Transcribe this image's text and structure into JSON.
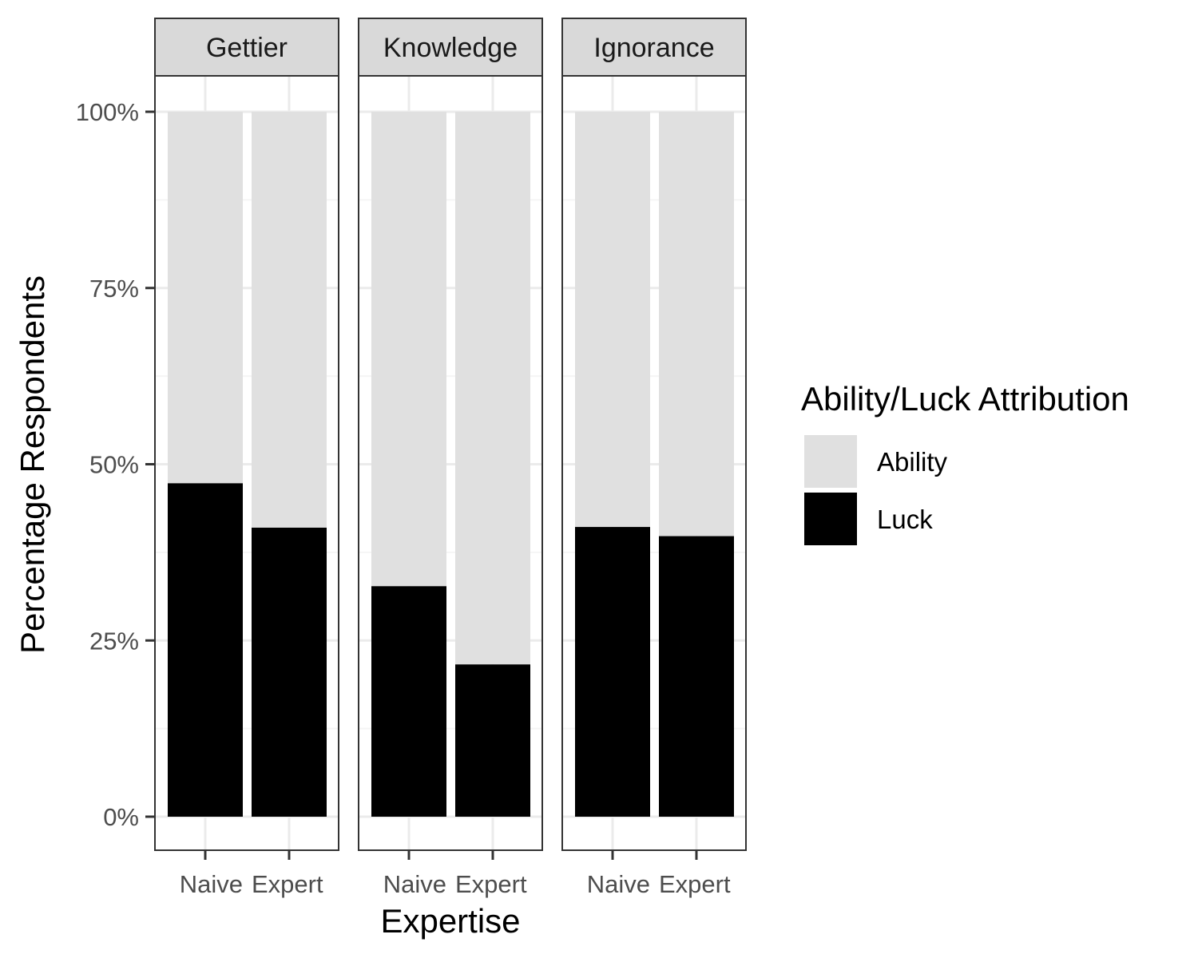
{
  "chart_data": {
    "type": "bar",
    "stacked": true,
    "title": "",
    "xlabel": "Expertise",
    "ylabel": "Percentage Respondents",
    "ylim": [
      0,
      1
    ],
    "yticks": [
      {
        "value": 0,
        "label": "0%"
      },
      {
        "value": 0.25,
        "label": "25%"
      },
      {
        "value": 0.5,
        "label": "50%"
      },
      {
        "value": 0.75,
        "label": "75%"
      },
      {
        "value": 1,
        "label": "100%"
      }
    ],
    "grid": true,
    "categories": [
      "Naive",
      "Expert"
    ],
    "facets": [
      {
        "label": "Gettier",
        "luck": [
          0.473,
          0.41
        ]
      },
      {
        "label": "Knowledge",
        "luck": [
          0.327,
          0.216
        ]
      },
      {
        "label": "Ignorance",
        "luck": [
          0.411,
          0.398
        ]
      }
    ],
    "legend": {
      "title": "Ability/Luck Attribution",
      "position": "right",
      "entries": [
        {
          "label": "Ability",
          "color": "#e0e0e0"
        },
        {
          "label": "Luck",
          "color": "#000000"
        }
      ]
    },
    "colors": {
      "ability": "#e0e0e0",
      "luck": "#000000",
      "strip_fill": "#d9d9d9",
      "panel_border": "#333333",
      "grid_major": "#ebebeb",
      "grid_minor": "#f5f5f5"
    }
  }
}
